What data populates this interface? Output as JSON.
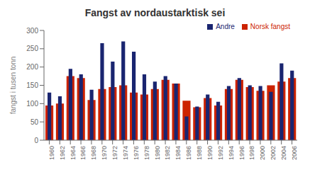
{
  "chart_data": {
    "type": "bar",
    "title": "Fangst av nordaustarktisk sei",
    "y_label": "fangst i tusen tonn",
    "categories": [
      "1960",
      "1962",
      "1964",
      "1966",
      "1968",
      "1970",
      "1972",
      "1974",
      "1976",
      "1978",
      "1980",
      "1982",
      "1984",
      "1986",
      "1988",
      "1990",
      "1992",
      "1994",
      "1996",
      "1998",
      "2000",
      "2002",
      "2004",
      "2006"
    ],
    "series": [
      {
        "name": "Norsk fangst",
        "color": "#cc2200",
        "values": [
          95,
          100,
          175,
          170,
          110,
          140,
          145,
          150,
          130,
          125,
          140,
          165,
          155,
          108,
          90,
          115,
          95,
          140,
          165,
          145,
          135,
          150,
          160,
          170
        ]
      },
      {
        "name": "Andre",
        "color": "#1a2570",
        "values": [
          130,
          120,
          195,
          180,
          138,
          265,
          215,
          270,
          242,
          180,
          160,
          175,
          155,
          65,
          92,
          125,
          105,
          148,
          170,
          150,
          148,
          132,
          210,
          190
        ]
      }
    ],
    "ylim": [
      0,
      300
    ],
    "yticks": [
      0,
      50,
      100,
      150,
      200,
      250,
      300
    ],
    "legend": "upper right",
    "grid": false
  }
}
